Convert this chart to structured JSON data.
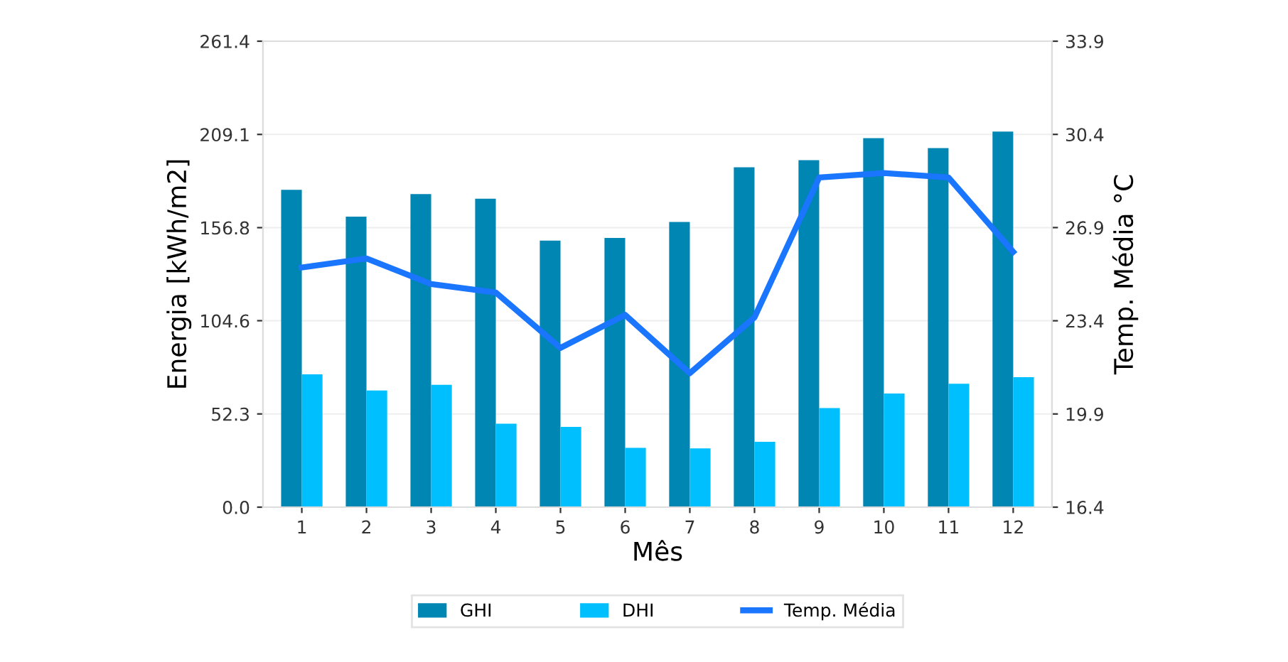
{
  "chart_data": {
    "type": "bar",
    "xlabel": "Mês",
    "ylabel": "Energia [kWh/m2]",
    "y2label": "Temp. Média °C",
    "categories": [
      "1",
      "2",
      "3",
      "4",
      "5",
      "6",
      "7",
      "8",
      "9",
      "10",
      "11",
      "12"
    ],
    "series": [
      {
        "name": "GHI",
        "color": "#0086b3",
        "values": [
          178,
          163,
          175.6,
          173,
          149.5,
          151,
          160,
          190.7,
          194.7,
          207,
          201.4,
          210.7
        ]
      },
      {
        "name": "DHI",
        "color": "#00bfff",
        "values": [
          74.5,
          65.4,
          68.6,
          46.8,
          45,
          33.3,
          33,
          36.7,
          55.6,
          63.8,
          69.2,
          72.9
        ]
      },
      {
        "name": "Temp. Média",
        "type": "line",
        "axis": "y2",
        "color": "#1a75ff",
        "values": [
          25.4,
          25.74,
          24.78,
          24.46,
          22.38,
          23.62,
          21.43,
          23.53,
          28.78,
          28.95,
          28.78,
          25.99
        ]
      }
    ],
    "ylim": [
      0,
      261.4
    ],
    "yticks": [
      {
        "value": 0,
        "label": "0.0"
      },
      52.3,
      104.6,
      156.8,
      209.1,
      261.4
    ],
    "y2lim": [
      16.4,
      33.9
    ],
    "y2ticks": [
      16.4,
      19.9,
      23.4,
      26.9,
      30.4,
      33.9
    ],
    "grid": "y",
    "legend": "bottom"
  }
}
